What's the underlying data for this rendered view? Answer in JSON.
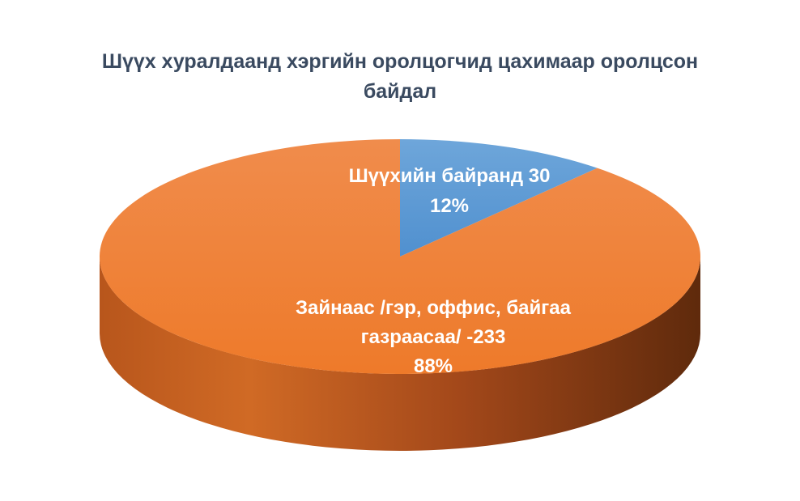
{
  "chart_data": {
    "type": "pie",
    "title": "Шүүх хуралдаанд хэргийн оролцогчид цахимаар оролцсон байдал",
    "slices": [
      {
        "label_lines": [
          "Шүүхийн байранд 30",
          "12%"
        ],
        "value": 30,
        "percent": 12,
        "color": "#5b9bd5"
      },
      {
        "label_lines": [
          "Зайнаас /гэр, оффис, байгаа",
          "газраасаа/ -233",
          "88%"
        ],
        "value": 233,
        "percent": 88,
        "color": "#ed7d31"
      }
    ],
    "style": "3d"
  }
}
